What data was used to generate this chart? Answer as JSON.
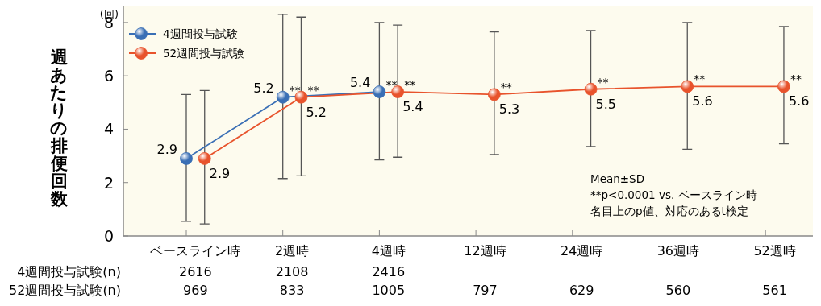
{
  "chart_data": {
    "type": "line",
    "ylabel": "週あたりの排便回数",
    "ylim": [
      0,
      8.6
    ],
    "yticks": [
      0,
      2,
      4,
      6,
      8
    ],
    "categories": [
      "ベースライン時",
      "2週時",
      "4週時",
      "12週時",
      "24週時",
      "36週時",
      "52週時"
    ],
    "series": [
      {
        "name": "4週間投与試験",
        "color": "#3a6fb5",
        "values": [
          2.9,
          5.2,
          5.4,
          null,
          null,
          null,
          null
        ],
        "errors": [
          [
            0.55,
            5.3
          ],
          [
            2.15,
            8.3
          ],
          [
            2.85,
            8.0
          ],
          null,
          null,
          null,
          null
        ]
      },
      {
        "name": "52週間投与試験",
        "color": "#e8532c",
        "values": [
          2.9,
          5.2,
          5.4,
          5.3,
          5.5,
          5.6,
          5.6
        ],
        "errors": [
          [
            0.45,
            5.45
          ],
          [
            2.25,
            8.2
          ],
          [
            2.95,
            7.9
          ],
          [
            3.05,
            7.65
          ],
          [
            3.35,
            7.7
          ],
          [
            3.25,
            8.0
          ],
          [
            3.45,
            7.85
          ]
        ]
      }
    ],
    "data_labels": true,
    "marker": "circle",
    "legend": "top left",
    "grid": false,
    "annotations": [
      "(回)",
      "Mean±SD",
      "**p<0.0001 vs. ベースライン時",
      "名目上のp値、対応のあるt検定",
      {
        "text": "**",
        "x": "2週時",
        "y": 5.2
      },
      {
        "text": "**",
        "x": "4週時",
        "y": 5.4
      },
      {
        "text": "**",
        "x": "2週時",
        "y": 5.2
      },
      {
        "text": "**",
        "x": "4週時",
        "y": 5.4
      },
      {
        "text": "**",
        "x": "12週時",
        "y": 5.3
      },
      {
        "text": "**",
        "x": "24週時",
        "y": 5.5
      },
      {
        "text": "**",
        "x": "36週時",
        "y": 5.6
      },
      {
        "text": "**",
        "x": "52週時",
        "y": 5.6
      },
      "4週間投与試験(n)",
      "52週間投与試験(n)",
      "2616",
      "2108",
      "2416",
      "969",
      "833",
      "1005",
      "797",
      "629",
      "560",
      "561"
    ]
  }
}
